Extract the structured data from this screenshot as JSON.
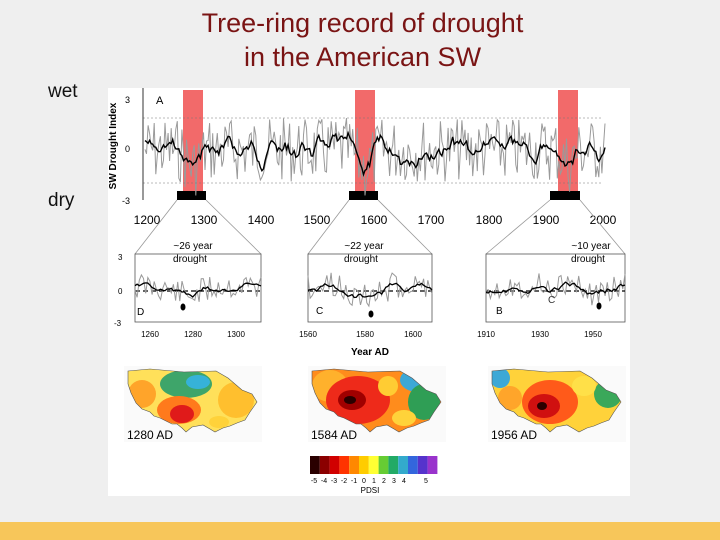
{
  "slide": {
    "title_line1": "Tree-ring record of drought",
    "title_line2": "in the American SW",
    "wet_label": "wet",
    "dry_label": "dry",
    "footer_color": "#f7c65a",
    "title_color": "#7a1414"
  },
  "figure": {
    "y_axis_label": "SW Drought Index",
    "x_axis_label": "Year AD",
    "pdsi_label": "PDSI",
    "panel_a": {
      "letter": "A",
      "ticks_y": [
        "3",
        "0",
        "-3"
      ],
      "ticks_x": [
        "1200",
        "1300",
        "1400",
        "1500",
        "1600",
        "1700",
        "1800",
        "1900",
        "2000"
      ],
      "highlight_color": "#f26a6a"
    },
    "panel_d": {
      "letter": "D",
      "annotation_l1": "~26 year",
      "annotation_l2": "drought",
      "ticks_x": [
        "1260",
        "1280",
        "1300"
      ],
      "ticks_y": [
        "3",
        "0",
        "-3"
      ]
    },
    "panel_c": {
      "letter": "C",
      "annotation_l1": "~22 year",
      "annotation_l2": "drought",
      "ticks_x": [
        "1560",
        "1580",
        "1600"
      ]
    },
    "panel_b": {
      "letter": "B",
      "annotation_l1": "~10 year",
      "annotation_l2": "drought",
      "ticks_x": [
        "1910",
        "1930",
        "1950"
      ]
    },
    "maps": [
      {
        "label": "1280 AD"
      },
      {
        "label": "1584 AD"
      },
      {
        "label": "1956 AD"
      }
    ],
    "colorbar": {
      "ticks": [
        "-5",
        "-4",
        "-3",
        "-2",
        "-1",
        "0",
        "1",
        "2",
        "3",
        "4",
        "5"
      ],
      "colors": [
        "#2a0000",
        "#8b0000",
        "#d10000",
        "#ff3300",
        "#ff8800",
        "#ffcc00",
        "#ffff33",
        "#66cc33",
        "#22aa66",
        "#33aacc",
        "#3366dd",
        "#5533cc",
        "#9933cc"
      ]
    }
  }
}
